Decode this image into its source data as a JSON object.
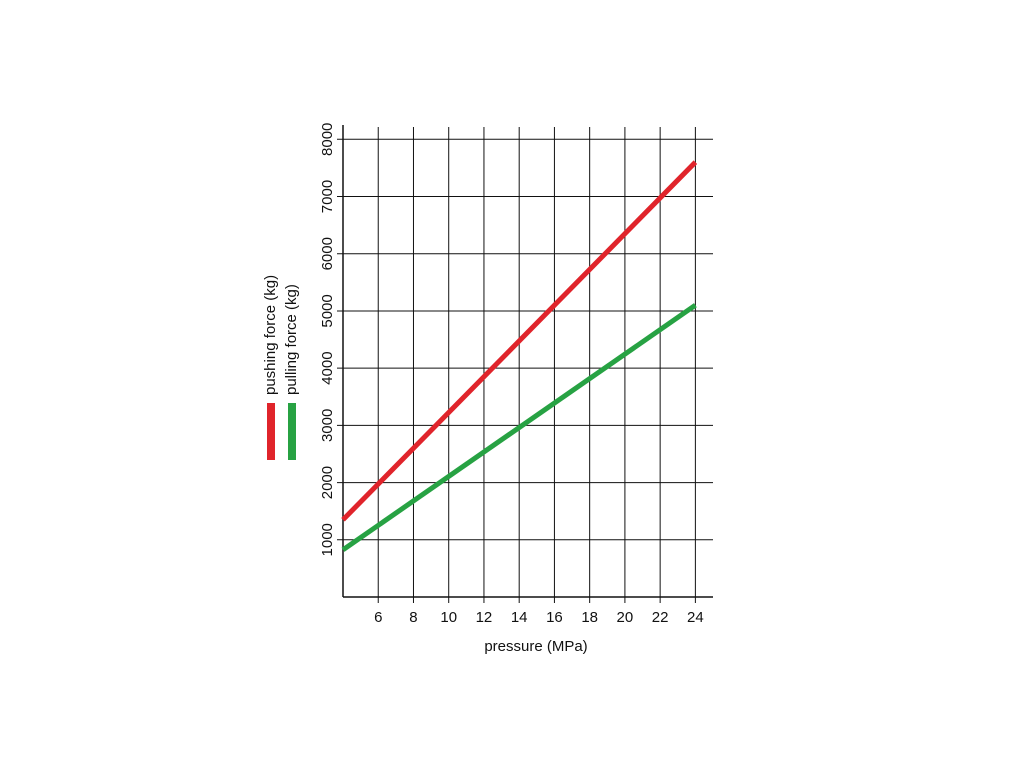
{
  "chart_data": {
    "type": "line",
    "x_label": "pressure (MPa)",
    "series": [
      {
        "name": "pushing force (kg)",
        "color": "#e0242b",
        "x": [
          4,
          24
        ],
        "values": [
          1350,
          7600
        ]
      },
      {
        "name": "pulling force (kg)",
        "color": "#27a243",
        "x": [
          4,
          24
        ],
        "values": [
          825,
          5100
        ]
      }
    ],
    "xlim": [
      4,
      25
    ],
    "xticks": [
      6,
      8,
      10,
      12,
      14,
      16,
      18,
      20,
      22,
      24
    ],
    "ylim": [
      0,
      8250
    ],
    "yticks": [
      1000,
      2000,
      3000,
      4000,
      5000,
      6000,
      7000,
      8000
    ],
    "grid": true
  }
}
